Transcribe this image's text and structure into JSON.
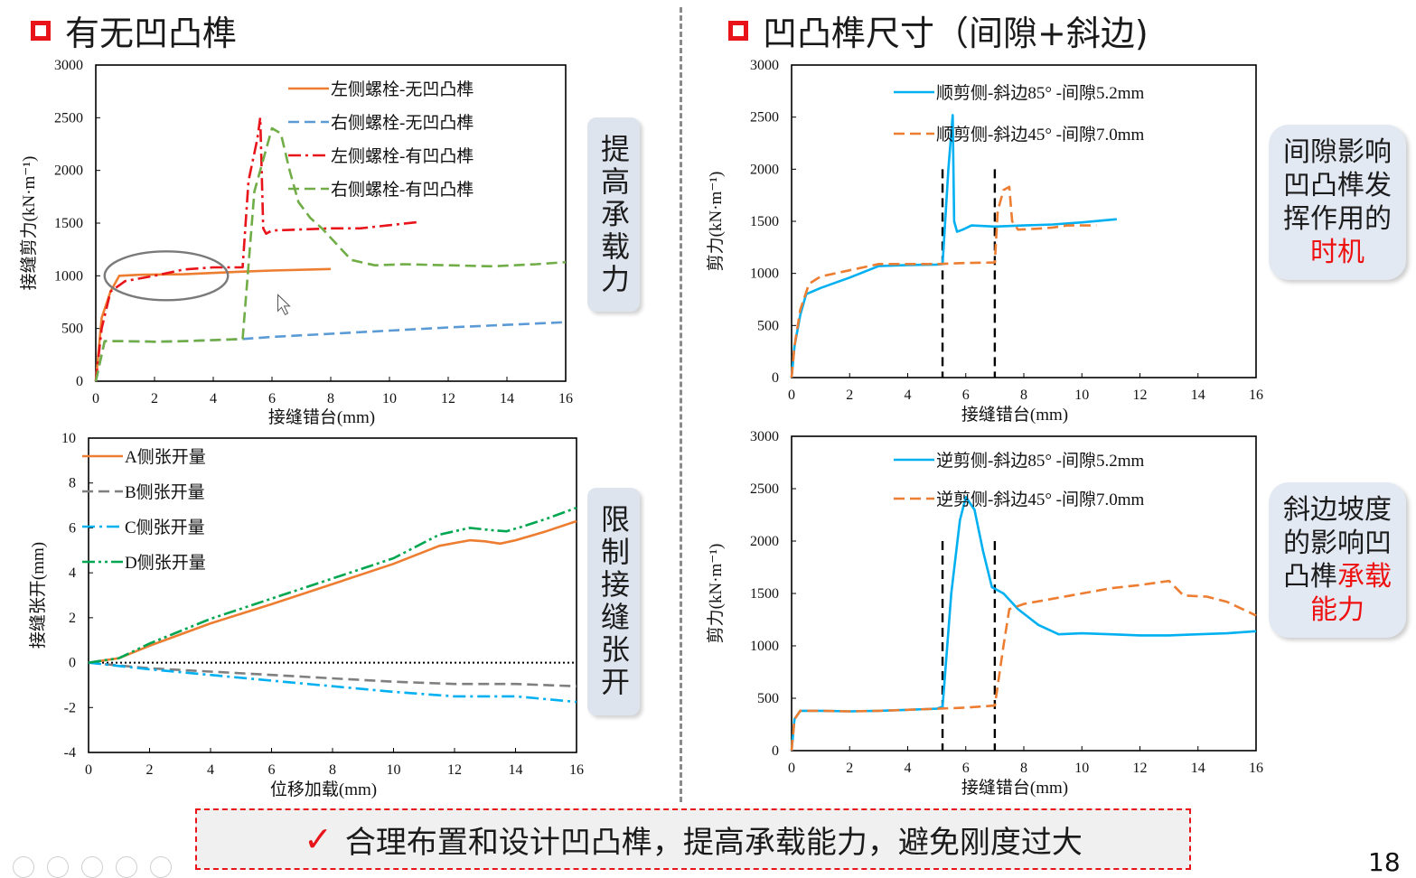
{
  "slide": {
    "left_title": "有无凹凸榫",
    "right_title": "凹凸榫尺寸（间隙+斜边)",
    "side_label_1": "提高承载力",
    "side_label_2": "限制接缝张开",
    "callout_1": {
      "text": "间隙影响凹凸榫发挥作用的",
      "highlight": "时机"
    },
    "callout_2": {
      "text": "斜边坡度的影响凹凸榫",
      "highlight": "承载",
      "tail": "能力"
    },
    "conclusion_mark": "✓",
    "conclusion": "合理布置和设计凹凸榫，提高承载能力，避免刚度过大",
    "page_number": "18",
    "colors": {
      "orange": "#ed7d31",
      "blue_dash": "#5b9bd5",
      "red": "#e8141a",
      "green": "#70ad47",
      "gray": "#7f7f7f",
      "cyan": "#00b0f0",
      "accent_red": "#e8141a"
    }
  },
  "chart_data": [
    {
      "type": "line",
      "xlabel": "接缝错台(mm)",
      "ylabel": "接缝剪力(kN·m⁻¹)",
      "xlim": [
        0,
        16
      ],
      "ylim": [
        0,
        3000
      ],
      "xticks": [
        0,
        2,
        4,
        6,
        8,
        10,
        12,
        14,
        16
      ],
      "yticks": [
        0,
        500,
        1000,
        1500,
        2000,
        2500,
        3000
      ],
      "grid": false,
      "legend": "top-right",
      "series": [
        {
          "name": "左侧螺栓-无凹凸榫",
          "color": "#ed7d31",
          "dash": "solid",
          "points": [
            [
              0,
              0
            ],
            [
              0.2,
              600
            ],
            [
              0.5,
              850
            ],
            [
              0.8,
              1000
            ],
            [
              1.5,
              1010
            ],
            [
              3,
              1015
            ],
            [
              5,
              1040
            ],
            [
              6,
              1050
            ],
            [
              8,
              1065
            ]
          ]
        },
        {
          "name": "右侧螺栓-无凹凸榫",
          "color": "#5b9bd5",
          "dash": "dash",
          "points": [
            [
              0,
              0
            ],
            [
              0.3,
              380
            ],
            [
              1,
              380
            ],
            [
              2,
              375
            ],
            [
              3,
              380
            ],
            [
              4,
              390
            ],
            [
              5,
              400
            ],
            [
              6,
              420
            ],
            [
              8,
              450
            ],
            [
              10,
              480
            ],
            [
              12,
              510
            ],
            [
              14,
              535
            ],
            [
              16,
              560
            ]
          ]
        },
        {
          "name": "左侧螺栓-有凹凸榫",
          "color": "#e8141a",
          "dash": "dashdot",
          "points": [
            [
              0,
              0
            ],
            [
              0.2,
              500
            ],
            [
              0.5,
              850
            ],
            [
              1,
              950
            ],
            [
              2,
              1000
            ],
            [
              3,
              1060
            ],
            [
              4,
              1080
            ],
            [
              5,
              1080
            ],
            [
              5.2,
              1900
            ],
            [
              5.5,
              2300
            ],
            [
              5.6,
              2500
            ],
            [
              5.7,
              1450
            ],
            [
              5.8,
              1400
            ],
            [
              6,
              1430
            ],
            [
              7,
              1440
            ],
            [
              8,
              1450
            ],
            [
              9,
              1450
            ],
            [
              10,
              1480
            ],
            [
              11,
              1510
            ]
          ]
        },
        {
          "name": "右侧螺栓-有凹凸榫",
          "color": "#70ad47",
          "dash": "dash",
          "points": [
            [
              0,
              0
            ],
            [
              0.3,
              380
            ],
            [
              1,
              380
            ],
            [
              2,
              375
            ],
            [
              3,
              380
            ],
            [
              4,
              390
            ],
            [
              5,
              400
            ],
            [
              5.4,
              1800
            ],
            [
              5.8,
              2200
            ],
            [
              6,
              2400
            ],
            [
              6.3,
              2350
            ],
            [
              6.6,
              2000
            ],
            [
              6.9,
              1700
            ],
            [
              7.3,
              1550
            ],
            [
              7.7,
              1450
            ],
            [
              8.2,
              1300
            ],
            [
              8.7,
              1150
            ],
            [
              9.5,
              1100
            ],
            [
              10.5,
              1110
            ],
            [
              12,
              1100
            ],
            [
              13.5,
              1090
            ],
            [
              15,
              1110
            ],
            [
              16,
              1130
            ]
          ]
        }
      ],
      "annotation": "ellipse around 0.3–4.5 mm, ≈1000 kN·m⁻¹"
    },
    {
      "type": "line",
      "xlabel": "位移加载(mm)",
      "ylabel": "接缝张开(mm)",
      "xlim": [
        0,
        16
      ],
      "ylim": [
        -4,
        10
      ],
      "xticks": [
        0,
        2,
        4,
        6,
        8,
        10,
        12,
        14,
        16
      ],
      "yticks": [
        -4,
        -2,
        0,
        2,
        4,
        6,
        8,
        10
      ],
      "grid": false,
      "legend": "top-left",
      "series": [
        {
          "name": "A侧张开量",
          "color": "#ed7d31",
          "dash": "solid",
          "points": [
            [
              0,
              0
            ],
            [
              1,
              0.2
            ],
            [
              2,
              0.75
            ],
            [
              4,
              1.75
            ],
            [
              6,
              2.6
            ],
            [
              8,
              3.5
            ],
            [
              10,
              4.4
            ],
            [
              11.5,
              5.2
            ],
            [
              12.5,
              5.45
            ],
            [
              13,
              5.4
            ],
            [
              13.5,
              5.3
            ],
            [
              14,
              5.45
            ],
            [
              15,
              5.85
            ],
            [
              16,
              6.3
            ]
          ]
        },
        {
          "name": "B侧张开量",
          "color": "#7f7f7f",
          "dash": "dash",
          "points": [
            [
              0,
              0
            ],
            [
              2,
              -0.25
            ],
            [
              4,
              -0.4
            ],
            [
              6,
              -0.55
            ],
            [
              8,
              -0.7
            ],
            [
              10,
              -0.85
            ],
            [
              12,
              -0.95
            ],
            [
              14,
              -0.95
            ],
            [
              16,
              -1.05
            ]
          ]
        },
        {
          "name": "C侧张开量",
          "color": "#00b0f0",
          "dash": "dashdot",
          "points": [
            [
              0,
              0
            ],
            [
              2,
              -0.3
            ],
            [
              4,
              -0.55
            ],
            [
              6,
              -0.8
            ],
            [
              8,
              -1.05
            ],
            [
              10,
              -1.3
            ],
            [
              12,
              -1.5
            ],
            [
              14,
              -1.5
            ],
            [
              16,
              -1.75
            ]
          ]
        },
        {
          "name": "D侧张开量",
          "color": "#00a651",
          "dash": "dashdotdot",
          "points": [
            [
              0,
              0
            ],
            [
              1,
              0.2
            ],
            [
              2,
              0.85
            ],
            [
              4,
              1.95
            ],
            [
              6,
              2.85
            ],
            [
              8,
              3.75
            ],
            [
              10,
              4.65
            ],
            [
              11.5,
              5.7
            ],
            [
              12.5,
              6.0
            ],
            [
              13.2,
              5.9
            ],
            [
              13.7,
              5.85
            ],
            [
              14.2,
              6.05
            ],
            [
              15,
              6.4
            ],
            [
              16,
              6.9
            ]
          ]
        }
      ],
      "reference_line": {
        "y": 0,
        "style": "dotted"
      }
    },
    {
      "type": "line",
      "xlabel": "接缝错台(mm)",
      "ylabel": "剪力(kN·m⁻¹)",
      "xlim": [
        0,
        16
      ],
      "ylim": [
        0,
        3000
      ],
      "xticks": [
        0,
        2,
        4,
        6,
        8,
        10,
        12,
        14,
        16
      ],
      "yticks": [
        0,
        500,
        1000,
        1500,
        2000,
        2500,
        3000
      ],
      "grid": false,
      "legend": "top-right",
      "vlines": [
        5.2,
        7.0
      ],
      "series": [
        {
          "name": "顺剪侧-斜边85° -间隙5.2mm",
          "color": "#00b0f0",
          "dash": "solid",
          "points": [
            [
              0,
              0
            ],
            [
              0.1,
              300
            ],
            [
              0.3,
              600
            ],
            [
              0.5,
              800
            ],
            [
              1,
              860
            ],
            [
              2,
              960
            ],
            [
              3,
              1070
            ],
            [
              4,
              1080
            ],
            [
              5,
              1085
            ],
            [
              5.2,
              1090
            ],
            [
              5.4,
              2000
            ],
            [
              5.55,
              2520
            ],
            [
              5.6,
              1500
            ],
            [
              5.7,
              1400
            ],
            [
              5.9,
              1420
            ],
            [
              6.2,
              1460
            ],
            [
              7,
              1450
            ],
            [
              8,
              1460
            ],
            [
              9,
              1470
            ],
            [
              10,
              1490
            ],
            [
              11.2,
              1520
            ]
          ]
        },
        {
          "name": "顺剪侧-斜边45° -间隙7.0mm",
          "color": "#ed7d31",
          "dash": "dash",
          "points": [
            [
              0,
              0
            ],
            [
              0.1,
              300
            ],
            [
              0.3,
              650
            ],
            [
              0.6,
              900
            ],
            [
              1,
              970
            ],
            [
              2,
              1030
            ],
            [
              3,
              1090
            ],
            [
              4,
              1090
            ],
            [
              5,
              1090
            ],
            [
              6,
              1100
            ],
            [
              7,
              1105
            ],
            [
              7.1,
              1600
            ],
            [
              7.3,
              1800
            ],
            [
              7.5,
              1830
            ],
            [
              7.6,
              1500
            ],
            [
              7.8,
              1420
            ],
            [
              8.5,
              1430
            ],
            [
              9,
              1440
            ],
            [
              9.5,
              1460
            ],
            [
              10.5,
              1460
            ]
          ]
        }
      ]
    },
    {
      "type": "line",
      "xlabel": "接缝错台(mm)",
      "ylabel": "剪力(kN·m⁻¹)",
      "xlim": [
        0,
        16
      ],
      "ylim": [
        0,
        3000
      ],
      "xticks": [
        0,
        2,
        4,
        6,
        8,
        10,
        12,
        14,
        16
      ],
      "yticks": [
        0,
        500,
        1000,
        1500,
        2000,
        2500,
        3000
      ],
      "grid": false,
      "legend": "top-right",
      "vlines": [
        5.2,
        7.0
      ],
      "series": [
        {
          "name": "逆剪侧-斜边85° -间隙5.2mm",
          "color": "#00b0f0",
          "dash": "solid",
          "points": [
            [
              0,
              0
            ],
            [
              0.1,
              300
            ],
            [
              0.3,
              380
            ],
            [
              1,
              380
            ],
            [
              2,
              375
            ],
            [
              3,
              380
            ],
            [
              4,
              390
            ],
            [
              5,
              400
            ],
            [
              5.2,
              420
            ],
            [
              5.5,
              1500
            ],
            [
              5.8,
              2200
            ],
            [
              6,
              2420
            ],
            [
              6.3,
              2300
            ],
            [
              6.6,
              1900
            ],
            [
              6.9,
              1560
            ],
            [
              7.3,
              1500
            ],
            [
              7.8,
              1350
            ],
            [
              8.5,
              1200
            ],
            [
              9.2,
              1110
            ],
            [
              10,
              1120
            ],
            [
              11,
              1110
            ],
            [
              12,
              1100
            ],
            [
              13,
              1100
            ],
            [
              14,
              1110
            ],
            [
              15,
              1120
            ],
            [
              16,
              1140
            ]
          ]
        },
        {
          "name": "逆剪侧-斜边45° -间隙7.0mm",
          "color": "#ed7d31",
          "dash": "dash",
          "points": [
            [
              0,
              0
            ],
            [
              0.1,
              300
            ],
            [
              0.3,
              380
            ],
            [
              1,
              380
            ],
            [
              2,
              375
            ],
            [
              3,
              380
            ],
            [
              4,
              390
            ],
            [
              5,
              400
            ],
            [
              6,
              410
            ],
            [
              7,
              430
            ],
            [
              7.3,
              1000
            ],
            [
              7.5,
              1350
            ],
            [
              8,
              1400
            ],
            [
              9,
              1450
            ],
            [
              10,
              1500
            ],
            [
              11,
              1550
            ],
            [
              12,
              1580
            ],
            [
              13,
              1620
            ],
            [
              13.5,
              1480
            ],
            [
              14.3,
              1470
            ],
            [
              15,
              1420
            ],
            [
              16,
              1290
            ]
          ]
        }
      ]
    }
  ]
}
